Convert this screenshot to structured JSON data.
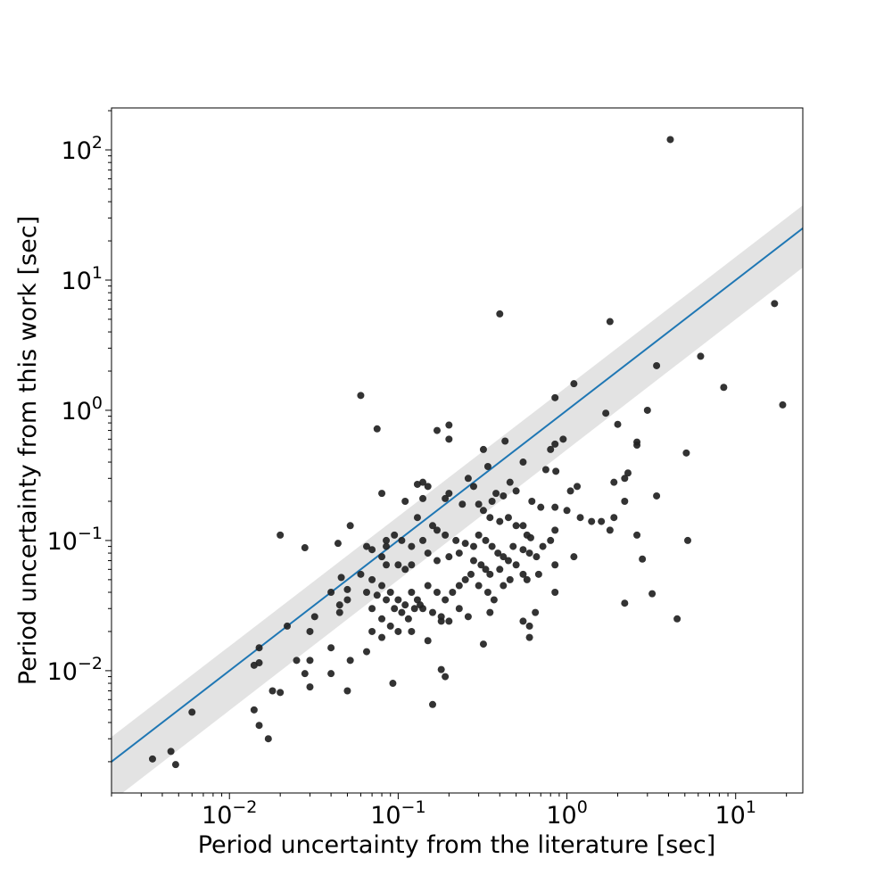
{
  "chart_data": {
    "type": "scatter",
    "xlabel": "Period uncertainty from the literature [sec]",
    "ylabel": "Period uncertainty from this work [sec]",
    "xscale": "log",
    "yscale": "log",
    "xlim": [
      0.002,
      25
    ],
    "ylim": [
      0.00115,
      210
    ],
    "x_ticks": [
      {
        "base": "10",
        "exp": "−2",
        "value": 0.01
      },
      {
        "base": "10",
        "exp": "−1",
        "value": 0.1
      },
      {
        "base": "10",
        "exp": "0",
        "value": 1
      },
      {
        "base": "10",
        "exp": "1",
        "value": 10
      }
    ],
    "y_ticks": [
      {
        "base": "10",
        "exp": "−2",
        "value": 0.01
      },
      {
        "base": "10",
        "exp": "−1",
        "value": 0.1
      },
      {
        "base": "10",
        "exp": "0",
        "value": 1
      },
      {
        "base": "10",
        "exp": "1",
        "value": 10
      },
      {
        "base": "10",
        "exp": "2",
        "value": 100
      }
    ],
    "grid": false,
    "colors": {
      "points": "#222222",
      "line": "#1f77b4",
      "band": "#d9d9d9"
    },
    "reference_line": {
      "x": [
        0.002,
        25
      ],
      "y": [
        0.002,
        25
      ]
    },
    "band": {
      "x": [
        0.002,
        25
      ],
      "y_low": [
        0.00099,
        12.5
      ],
      "y_high": [
        0.0031,
        37.5
      ]
    },
    "points": [
      [
        4.1,
        120
      ],
      [
        0.4,
        5.5
      ],
      [
        1.8,
        4.8
      ],
      [
        17,
        6.6
      ],
      [
        6.2,
        2.6
      ],
      [
        3.4,
        2.2
      ],
      [
        8.5,
        1.5
      ],
      [
        19,
        1.1
      ],
      [
        1.1,
        1.6
      ],
      [
        0.85,
        1.25
      ],
      [
        0.06,
        1.3
      ],
      [
        1.7,
        0.95
      ],
      [
        3,
        1.0
      ],
      [
        0.075,
        0.72
      ],
      [
        0.2,
        0.77
      ],
      [
        0.17,
        0.7
      ],
      [
        2.0,
        0.78
      ],
      [
        0.2,
        0.6
      ],
      [
        0.43,
        0.58
      ],
      [
        0.95,
        0.6
      ],
      [
        0.85,
        0.55
      ],
      [
        0.8,
        0.5
      ],
      [
        2.6,
        0.57
      ],
      [
        2.6,
        0.54
      ],
      [
        5.1,
        0.47
      ],
      [
        0.32,
        0.5
      ],
      [
        0.34,
        0.37
      ],
      [
        0.55,
        0.4
      ],
      [
        0.75,
        0.35
      ],
      [
        0.86,
        0.34
      ],
      [
        1.15,
        0.26
      ],
      [
        1.05,
        0.24
      ],
      [
        2.3,
        0.33
      ],
      [
        1.9,
        0.28
      ],
      [
        2.2,
        0.3
      ],
      [
        0.13,
        0.27
      ],
      [
        0.14,
        0.28
      ],
      [
        0.15,
        0.26
      ],
      [
        0.28,
        0.26
      ],
      [
        0.26,
        0.3
      ],
      [
        0.46,
        0.28
      ],
      [
        0.5,
        0.24
      ],
      [
        0.42,
        0.22
      ],
      [
        0.38,
        0.23
      ],
      [
        0.36,
        0.2
      ],
      [
        0.2,
        0.23
      ],
      [
        0.19,
        0.21
      ],
      [
        0.24,
        0.19
      ],
      [
        0.3,
        0.19
      ],
      [
        0.32,
        0.17
      ],
      [
        0.35,
        0.15
      ],
      [
        0.4,
        0.14
      ],
      [
        0.45,
        0.15
      ],
      [
        0.55,
        0.13
      ],
      [
        0.62,
        0.2
      ],
      [
        0.7,
        0.18
      ],
      [
        0.85,
        0.18
      ],
      [
        1.0,
        0.17
      ],
      [
        1.2,
        0.15
      ],
      [
        1.4,
        0.14
      ],
      [
        1.6,
        0.14
      ],
      [
        1.8,
        0.12
      ],
      [
        1.9,
        0.15
      ],
      [
        2.2,
        0.2
      ],
      [
        3.4,
        0.22
      ],
      [
        0.08,
        0.23
      ],
      [
        0.13,
        0.15
      ],
      [
        0.16,
        0.13
      ],
      [
        0.17,
        0.12
      ],
      [
        0.19,
        0.11
      ],
      [
        0.22,
        0.1
      ],
      [
        0.25,
        0.095
      ],
      [
        0.28,
        0.09
      ],
      [
        0.3,
        0.11
      ],
      [
        0.33,
        0.1
      ],
      [
        0.36,
        0.09
      ],
      [
        0.39,
        0.08
      ],
      [
        0.42,
        0.075
      ],
      [
        0.48,
        0.09
      ],
      [
        0.55,
        0.085
      ],
      [
        0.6,
        0.08
      ],
      [
        0.66,
        0.075
      ],
      [
        0.72,
        0.09
      ],
      [
        0.8,
        0.1
      ],
      [
        0.85,
        0.12
      ],
      [
        0.58,
        0.11
      ],
      [
        0.61,
        0.105
      ],
      [
        0.5,
        0.13
      ],
      [
        0.14,
        0.21
      ],
      [
        0.11,
        0.2
      ],
      [
        0.085,
        0.1
      ],
      [
        0.085,
        0.09
      ],
      [
        0.095,
        0.11
      ],
      [
        0.105,
        0.1
      ],
      [
        0.12,
        0.09
      ],
      [
        0.14,
        0.1
      ],
      [
        0.1,
        0.065
      ],
      [
        0.11,
        0.06
      ],
      [
        0.12,
        0.065
      ],
      [
        0.15,
        0.08
      ],
      [
        0.17,
        0.07
      ],
      [
        0.2,
        0.075
      ],
      [
        0.23,
        0.08
      ],
      [
        0.28,
        0.07
      ],
      [
        0.31,
        0.065
      ],
      [
        0.33,
        0.06
      ],
      [
        0.35,
        0.055
      ],
      [
        0.4,
        0.06
      ],
      [
        0.45,
        0.07
      ],
      [
        0.5,
        0.065
      ],
      [
        0.55,
        0.055
      ],
      [
        0.58,
        0.05
      ],
      [
        0.68,
        0.055
      ],
      [
        0.85,
        0.065
      ],
      [
        1.1,
        0.075
      ],
      [
        2.6,
        0.11
      ],
      [
        2.8,
        0.072
      ],
      [
        5.2,
        0.1
      ],
      [
        0.044,
        0.095
      ],
      [
        0.052,
        0.13
      ],
      [
        0.065,
        0.09
      ],
      [
        0.07,
        0.085
      ],
      [
        0.08,
        0.075
      ],
      [
        0.085,
        0.065
      ],
      [
        0.06,
        0.055
      ],
      [
        0.07,
        0.05
      ],
      [
        0.08,
        0.045
      ],
      [
        0.09,
        0.04
      ],
      [
        0.1,
        0.035
      ],
      [
        0.11,
        0.032
      ],
      [
        0.12,
        0.04
      ],
      [
        0.13,
        0.035
      ],
      [
        0.14,
        0.03
      ],
      [
        0.15,
        0.045
      ],
      [
        0.17,
        0.04
      ],
      [
        0.19,
        0.035
      ],
      [
        0.21,
        0.04
      ],
      [
        0.23,
        0.045
      ],
      [
        0.25,
        0.05
      ],
      [
        0.27,
        0.055
      ],
      [
        0.3,
        0.045
      ],
      [
        0.34,
        0.04
      ],
      [
        0.37,
        0.035
      ],
      [
        0.42,
        0.045
      ],
      [
        0.46,
        0.05
      ],
      [
        0.065,
        0.04
      ],
      [
        0.075,
        0.038
      ],
      [
        0.085,
        0.035
      ],
      [
        0.095,
        0.03
      ],
      [
        0.105,
        0.028
      ],
      [
        0.115,
        0.025
      ],
      [
        0.125,
        0.03
      ],
      [
        0.135,
        0.032
      ],
      [
        0.16,
        0.028
      ],
      [
        0.18,
        0.026
      ],
      [
        0.2,
        0.024
      ],
      [
        0.23,
        0.03
      ],
      [
        0.26,
        0.026
      ],
      [
        0.35,
        0.028
      ],
      [
        0.55,
        0.024
      ],
      [
        0.6,
        0.022
      ],
      [
        0.65,
        0.028
      ],
      [
        0.6,
        0.018
      ],
      [
        0.32,
        0.016
      ],
      [
        0.07,
        0.03
      ],
      [
        0.08,
        0.025
      ],
      [
        0.09,
        0.022
      ],
      [
        0.1,
        0.02
      ],
      [
        0.12,
        0.02
      ],
      [
        0.15,
        0.017
      ],
      [
        0.18,
        0.024
      ],
      [
        0.07,
        0.02
      ],
      [
        0.08,
        0.018
      ],
      [
        0.065,
        0.014
      ],
      [
        0.045,
        0.032
      ],
      [
        0.05,
        0.035
      ],
      [
        0.046,
        0.052
      ],
      [
        0.04,
        0.04
      ],
      [
        0.032,
        0.026
      ],
      [
        0.03,
        0.02
      ],
      [
        0.025,
        0.012
      ],
      [
        0.028,
        0.0095
      ],
      [
        0.03,
        0.012
      ],
      [
        0.03,
        0.0075
      ],
      [
        0.04,
        0.0095
      ],
      [
        0.04,
        0.015
      ],
      [
        0.05,
        0.042
      ],
      [
        0.052,
        0.012
      ],
      [
        0.045,
        0.028
      ],
      [
        0.05,
        0.007
      ],
      [
        0.022,
        0.022
      ],
      [
        0.015,
        0.015
      ],
      [
        0.014,
        0.011
      ],
      [
        0.015,
        0.0115
      ],
      [
        0.018,
        0.007
      ],
      [
        0.02,
        0.0068
      ],
      [
        0.014,
        0.005
      ],
      [
        0.015,
        0.0038
      ],
      [
        0.017,
        0.003
      ],
      [
        0.006,
        0.0048
      ],
      [
        0.0035,
        0.0021
      ],
      [
        0.0045,
        0.0024
      ],
      [
        0.0048,
        0.0019
      ],
      [
        0.16,
        0.0055
      ],
      [
        0.18,
        0.0102
      ],
      [
        0.19,
        0.009
      ],
      [
        0.093,
        0.008
      ],
      [
        2.2,
        0.033
      ],
      [
        3.2,
        0.039
      ],
      [
        4.5,
        0.025
      ],
      [
        0.85,
        0.04
      ],
      [
        0.028,
        0.088
      ],
      [
        0.02,
        0.11
      ]
    ]
  }
}
